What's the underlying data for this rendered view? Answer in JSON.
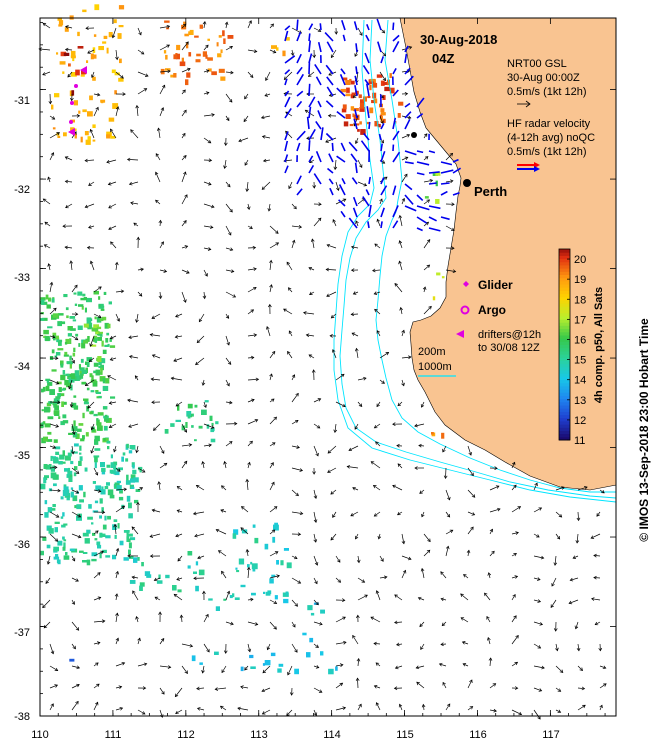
{
  "map": {
    "date_title": "30-Aug-2018",
    "time_title": "04Z",
    "city_label": "Perth",
    "x_ticks": [
      "110",
      "111",
      "112",
      "113",
      "114",
      "115",
      "116",
      "117"
    ],
    "y_ticks": [
      "-31",
      "-32",
      "-33",
      "-34",
      "-35",
      "-36",
      "-37",
      "-38"
    ],
    "lon_range": [
      110,
      117.9
    ],
    "lat_range": [
      -38,
      -30.2
    ]
  },
  "legend": {
    "gsl_line1": "NRT00 GSL",
    "gsl_line2": "30-Aug 00:00Z",
    "gsl_line3": "0.5m/s (1kt 12h)",
    "hf_line1": "HF radar velocity",
    "hf_line2": "(4-12h avg) noQC",
    "hf_line3": "0.5m/s (1kt 12h)",
    "glider_label": "Glider",
    "argo_label": "Argo",
    "drifters_line1": "drifters@12h",
    "drifters_line2": "to 30/08 12Z",
    "depth_200": "200m",
    "depth_1000": "1000m"
  },
  "colorbar": {
    "label": "4h comp. p50, All Sats",
    "ticks": [
      "20",
      "19",
      "18",
      "17",
      "16",
      "15",
      "14",
      "13",
      "12",
      "11"
    ],
    "range": [
      11,
      20.5
    ]
  },
  "colors": {
    "land": "#F9C491",
    "bathy": "#00E5FF",
    "hf_radar": "#0000EE",
    "glider": "#E000E0",
    "hf_red": "#FF0000"
  },
  "credit": "© IMOS 13-Sep-2018 23:00 Hobart Time"
}
